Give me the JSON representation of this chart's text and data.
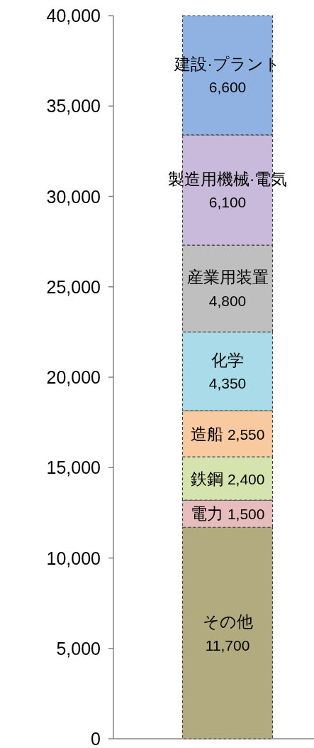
{
  "chart_data": {
    "type": "bar",
    "stacked": true,
    "categories": [
      null
    ],
    "ylim": [
      0,
      40000
    ],
    "yticks": [
      {
        "value": 0,
        "label": "0"
      },
      {
        "value": 5000,
        "label": "5,000"
      },
      {
        "value": 10000,
        "label": "10,000"
      },
      {
        "value": 15000,
        "label": "15,000"
      },
      {
        "value": 20000,
        "label": "20,000"
      },
      {
        "value": 25000,
        "label": "25,000"
      },
      {
        "value": 30000,
        "label": "30,000"
      },
      {
        "value": 35000,
        "label": "35,000"
      },
      {
        "value": 40000,
        "label": "40,000"
      }
    ],
    "series": [
      {
        "name": "その他",
        "color": "#b3ab80",
        "values": [
          11700
        ],
        "value_labels": [
          "11,700"
        ]
      },
      {
        "name": "電力",
        "color": "#e6bcbc",
        "values": [
          1500
        ],
        "value_labels": [
          "1,500"
        ]
      },
      {
        "name": "鉄鋼",
        "color": "#d5e3ae",
        "values": [
          2400
        ],
        "value_labels": [
          "2,400"
        ]
      },
      {
        "name": "造船",
        "color": "#f9c9a0",
        "values": [
          2550
        ],
        "value_labels": [
          "2,550"
        ]
      },
      {
        "name": "化学",
        "color": "#a9dbe8",
        "values": [
          4350
        ],
        "value_labels": [
          "4,350"
        ]
      },
      {
        "name": "産業用装置",
        "color": "#bfbfbf",
        "values": [
          4800
        ],
        "value_labels": [
          "4,800"
        ]
      },
      {
        "name": "製造用機械·電気",
        "color": "#c9badc",
        "values": [
          6100
        ],
        "value_labels": [
          "6,100"
        ]
      },
      {
        "name": "建設·プラント",
        "color": "#8fb2e2",
        "values": [
          6600
        ],
        "value_labels": [
          "6,600"
        ]
      }
    ]
  }
}
